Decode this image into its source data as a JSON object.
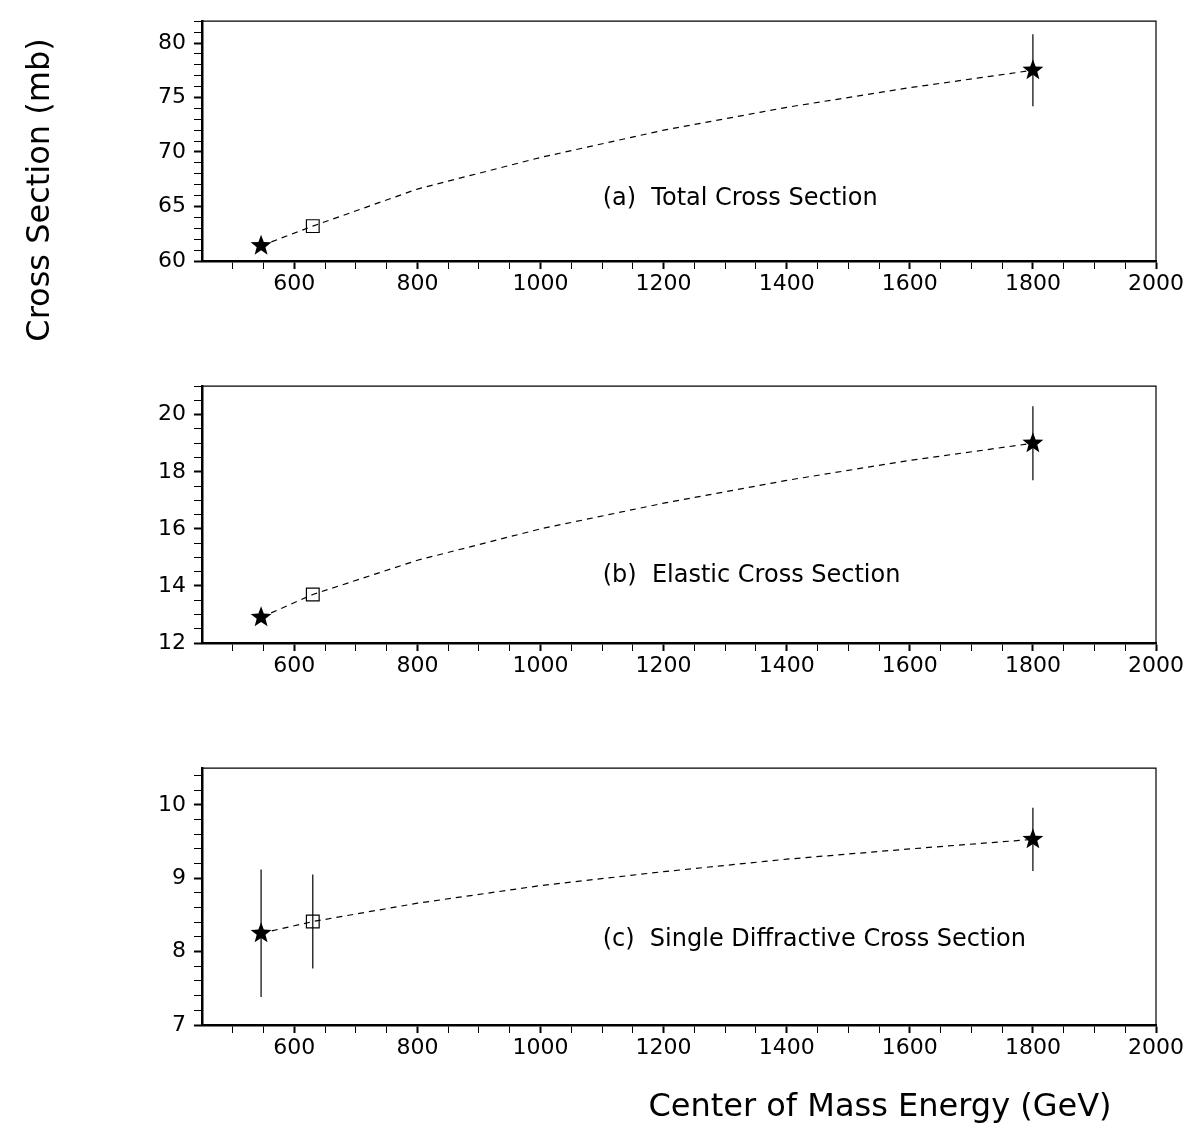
{
  "chart_data": [
    {
      "type": "scatter",
      "ylabel": "Cross Section (mb)",
      "annotations": [
        "(a)  Total Cross Section"
      ],
      "xlim": [
        450,
        2000
      ],
      "ylim": [
        60,
        82
      ],
      "xticks": [
        {
          "value": 500,
          "label": null
        },
        {
          "value": 550,
          "label": null
        },
        600,
        {
          "value": 650,
          "label": null
        },
        {
          "value": 700,
          "label": null
        },
        {
          "value": 750,
          "label": null
        },
        800,
        {
          "value": 850,
          "label": null
        },
        {
          "value": 900,
          "label": null
        },
        {
          "value": 950,
          "label": null
        },
        1000,
        {
          "value": 1050,
          "label": null
        },
        {
          "value": 1100,
          "label": null
        },
        {
          "value": 1150,
          "label": null
        },
        1200,
        {
          "value": 1250,
          "label": null
        },
        {
          "value": 1300,
          "label": null
        },
        {
          "value": 1350,
          "label": null
        },
        1400,
        {
          "value": 1450,
          "label": null
        },
        {
          "value": 1500,
          "label": null
        },
        {
          "value": 1550,
          "label": null
        },
        1600,
        {
          "value": 1650,
          "label": null
        },
        {
          "value": 1700,
          "label": null
        },
        {
          "value": 1750,
          "label": null
        },
        1800,
        {
          "value": 1850,
          "label": null
        },
        {
          "value": 1900,
          "label": null
        },
        {
          "value": 1950,
          "label": null
        },
        2000
      ],
      "yticks": [
        60,
        {
          "value": 61,
          "label": null
        },
        {
          "value": 62,
          "label": null
        },
        {
          "value": 63,
          "label": null
        },
        {
          "value": 64,
          "label": null
        },
        65,
        {
          "value": 66,
          "label": null
        },
        {
          "value": 67,
          "label": null
        },
        {
          "value": 68,
          "label": null
        },
        {
          "value": 69,
          "label": null
        },
        70,
        {
          "value": 71,
          "label": null
        },
        {
          "value": 72,
          "label": null
        },
        {
          "value": 73,
          "label": null
        },
        {
          "value": 74,
          "label": null
        },
        75,
        {
          "value": 76,
          "label": null
        },
        {
          "value": 77,
          "label": null
        },
        {
          "value": 78,
          "label": null
        },
        {
          "value": 79,
          "label": null
        },
        80,
        {
          "value": 81,
          "label": null
        },
        {
          "value": 82,
          "label": null
        }
      ],
      "grid": false,
      "legend": false,
      "series": [
        {
          "type": "line",
          "x": [
            546,
            630,
            800,
            1000,
            1200,
            1400,
            1600,
            1800
          ],
          "values": [
            61.4,
            63.2,
            66.6,
            69.5,
            72.0,
            74.1,
            75.9,
            77.5
          ],
          "color": "#000000",
          "marker": "none",
          "line_style": "dashed"
        },
        {
          "x": [
            546,
            1800
          ],
          "values": [
            61.4,
            77.5
          ],
          "errors": [
            null,
            3.3
          ],
          "color": "#000000",
          "marker": "star"
        },
        {
          "x": [
            630
          ],
          "values": [
            63.2
          ],
          "color": "#000000",
          "marker": "square"
        }
      ]
    },
    {
      "type": "scatter",
      "annotations": [
        "(b)  Elastic Cross Section"
      ],
      "xlim": [
        450,
        2000
      ],
      "ylim": [
        12,
        21
      ],
      "xticks": [
        {
          "value": 500,
          "label": null
        },
        {
          "value": 550,
          "label": null
        },
        600,
        {
          "value": 650,
          "label": null
        },
        {
          "value": 700,
          "label": null
        },
        {
          "value": 750,
          "label": null
        },
        800,
        {
          "value": 850,
          "label": null
        },
        {
          "value": 900,
          "label": null
        },
        {
          "value": 950,
          "label": null
        },
        1000,
        {
          "value": 1050,
          "label": null
        },
        {
          "value": 1100,
          "label": null
        },
        {
          "value": 1150,
          "label": null
        },
        1200,
        {
          "value": 1250,
          "label": null
        },
        {
          "value": 1300,
          "label": null
        },
        {
          "value": 1350,
          "label": null
        },
        1400,
        {
          "value": 1450,
          "label": null
        },
        {
          "value": 1500,
          "label": null
        },
        {
          "value": 1550,
          "label": null
        },
        1600,
        {
          "value": 1650,
          "label": null
        },
        {
          "value": 1700,
          "label": null
        },
        {
          "value": 1750,
          "label": null
        },
        1800,
        {
          "value": 1850,
          "label": null
        },
        {
          "value": 1900,
          "label": null
        },
        {
          "value": 1950,
          "label": null
        },
        2000
      ],
      "yticks": [
        12,
        {
          "value": 12.5,
          "label": null
        },
        {
          "value": 13,
          "label": null
        },
        {
          "value": 13.5,
          "label": null
        },
        14,
        {
          "value": 14.5,
          "label": null
        },
        {
          "value": 15,
          "label": null
        },
        {
          "value": 15.5,
          "label": null
        },
        16,
        {
          "value": 16.5,
          "label": null
        },
        {
          "value": 17,
          "label": null
        },
        {
          "value": 17.5,
          "label": null
        },
        18,
        {
          "value": 18.5,
          "label": null
        },
        {
          "value": 19,
          "label": null
        },
        {
          "value": 19.5,
          "label": null
        },
        20,
        {
          "value": 20.5,
          "label": null
        },
        {
          "value": 21,
          "label": null
        }
      ],
      "grid": false,
      "legend": false,
      "series": [
        {
          "type": "line",
          "x": [
            546,
            630,
            800,
            1000,
            1200,
            1400,
            1600,
            1800
          ],
          "values": [
            12.9,
            13.7,
            14.9,
            16.0,
            16.9,
            17.7,
            18.4,
            19.0
          ],
          "color": "#000000",
          "marker": "none",
          "line_style": "dashed"
        },
        {
          "x": [
            546,
            1800
          ],
          "values": [
            12.9,
            19.0
          ],
          "errors": [
            null,
            1.3
          ],
          "color": "#000000",
          "marker": "star"
        },
        {
          "x": [
            630
          ],
          "values": [
            13.7
          ],
          "color": "#000000",
          "marker": "square"
        }
      ]
    },
    {
      "type": "scatter",
      "xlabel": "Center of Mass Energy (GeV)",
      "annotations": [
        "(c)  Single Diffractive Cross Section"
      ],
      "xlim": [
        450,
        2000
      ],
      "ylim": [
        7,
        10.5
      ],
      "xticks": [
        {
          "value": 500,
          "label": null
        },
        {
          "value": 550,
          "label": null
        },
        600,
        {
          "value": 650,
          "label": null
        },
        {
          "value": 700,
          "label": null
        },
        {
          "value": 750,
          "label": null
        },
        800,
        {
          "value": 850,
          "label": null
        },
        {
          "value": 900,
          "label": null
        },
        {
          "value": 950,
          "label": null
        },
        1000,
        {
          "value": 1050,
          "label": null
        },
        {
          "value": 1100,
          "label": null
        },
        {
          "value": 1150,
          "label": null
        },
        1200,
        {
          "value": 1250,
          "label": null
        },
        {
          "value": 1300,
          "label": null
        },
        {
          "value": 1350,
          "label": null
        },
        1400,
        {
          "value": 1450,
          "label": null
        },
        {
          "value": 1500,
          "label": null
        },
        {
          "value": 1550,
          "label": null
        },
        1600,
        {
          "value": 1650,
          "label": null
        },
        {
          "value": 1700,
          "label": null
        },
        {
          "value": 1750,
          "label": null
        },
        1800,
        {
          "value": 1850,
          "label": null
        },
        {
          "value": 1900,
          "label": null
        },
        {
          "value": 1950,
          "label": null
        },
        2000
      ],
      "yticks": [
        7,
        {
          "value": 7.2,
          "label": null
        },
        {
          "value": 7.4,
          "label": null
        },
        {
          "value": 7.6,
          "label": null
        },
        {
          "value": 7.8,
          "label": null
        },
        8,
        {
          "value": 8.2,
          "label": null
        },
        {
          "value": 8.4,
          "label": null
        },
        {
          "value": 8.6,
          "label": null
        },
        {
          "value": 8.8,
          "label": null
        },
        9,
        {
          "value": 9.2,
          "label": null
        },
        {
          "value": 9.4,
          "label": null
        },
        {
          "value": 9.6,
          "label": null
        },
        {
          "value": 9.8,
          "label": null
        },
        10,
        {
          "value": 10.2,
          "label": null
        },
        {
          "value": 10.4,
          "label": null
        }
      ],
      "grid": false,
      "legend": false,
      "series": [
        {
          "type": "line",
          "x": [
            546,
            630,
            800,
            1000,
            1200,
            1400,
            1600,
            1800
          ],
          "values": [
            8.25,
            8.41,
            8.66,
            8.9,
            9.09,
            9.26,
            9.4,
            9.53
          ],
          "color": "#000000",
          "marker": "none",
          "line_style": "dashed"
        },
        {
          "x": [
            546,
            1800
          ],
          "values": [
            8.25,
            9.53
          ],
          "errors": [
            0.87,
            0.43
          ],
          "color": "#000000",
          "marker": "star"
        },
        {
          "x": [
            630
          ],
          "values": [
            8.41
          ],
          "errors": [
            0.64
          ],
          "color": "#000000",
          "marker": "square"
        }
      ]
    }
  ]
}
